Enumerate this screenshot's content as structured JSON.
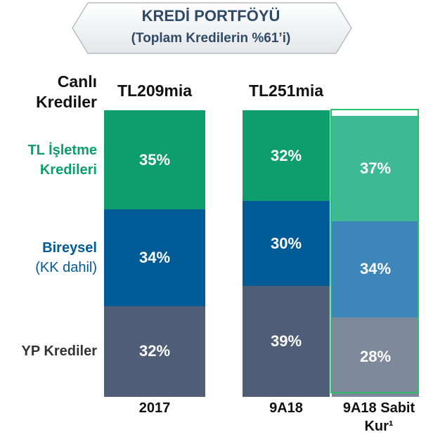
{
  "chart_data": {
    "type": "bar",
    "stacked": true,
    "title": "KREDİ PORTFÖYÜ",
    "subtitle": "(Toplam Kredilerin %61’i)",
    "row_header": "Canlı Krediler",
    "categories": [
      "2017",
      "9A18",
      "9A18 Sabit Kur¹"
    ],
    "total_labels": [
      "TL209mia",
      "TL251mia",
      null
    ],
    "series": [
      {
        "name": "YP Krediler",
        "color": "#4f5e76",
        "colors": [
          "#4f5e76",
          "#4f5e76",
          "#7e8a9b"
        ],
        "label_color": "#333333",
        "values": [
          32,
          39,
          28
        ],
        "value_labels": [
          "32%",
          "39%",
          "28%"
        ]
      },
      {
        "name": "Bireysel",
        "name_note": "(KK dahil)",
        "color": "#005b97",
        "colors": [
          "#005b97",
          "#005b97",
          "#3c86ba"
        ],
        "label_color": "#005b97",
        "values": [
          34,
          30,
          34
        ],
        "value_labels": [
          "34%",
          "30%",
          "34%"
        ]
      },
      {
        "name": "TL İşletme Kredileri",
        "color": "#0e9e6e",
        "colors": [
          "#0e9e6e",
          "#0e9e6e",
          "#3db994"
        ],
        "label_color": "#0e9e6e",
        "values": [
          35,
          32,
          37
        ],
        "value_labels": [
          "35%",
          "32%",
          "37%"
        ]
      }
    ]
  }
}
